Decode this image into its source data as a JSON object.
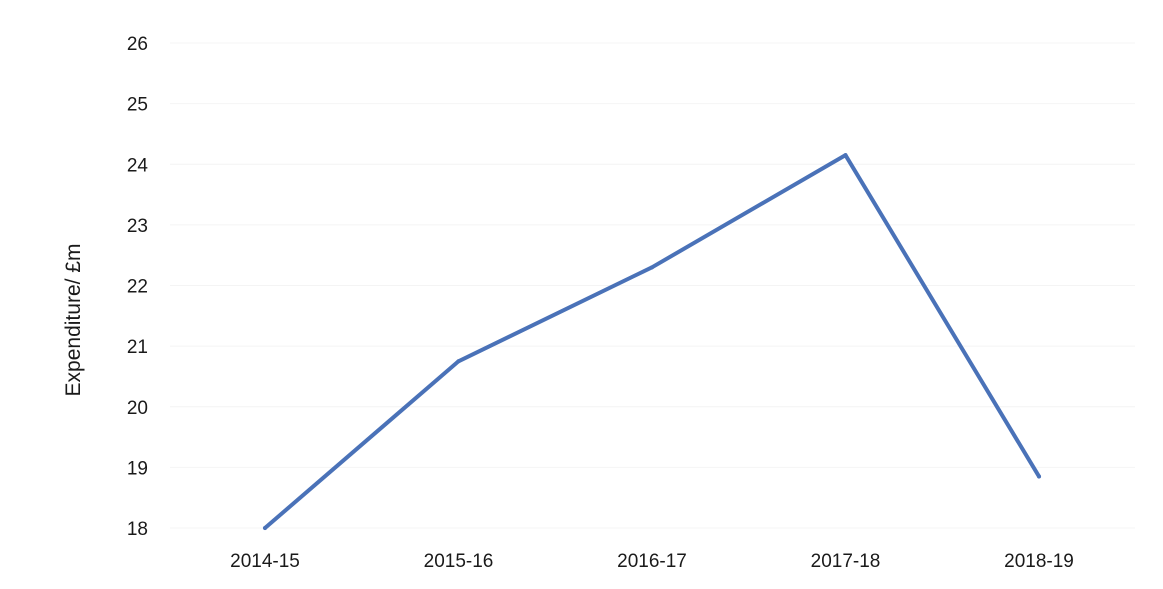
{
  "chart_data": {
    "type": "line",
    "title": "",
    "xlabel": "",
    "ylabel": "Expenditure/ £m",
    "categories": [
      "2014-15",
      "2015-16",
      "2016-17",
      "2017-18",
      "2018-19"
    ],
    "series": [
      {
        "values": [
          18.0,
          20.75,
          22.3,
          24.15,
          18.85
        ]
      }
    ],
    "ylim": [
      18,
      26
    ],
    "yticks": [
      18,
      19,
      20,
      21,
      22,
      23,
      24,
      25,
      26
    ],
    "grid": "faint horizontal",
    "legend": "none",
    "colors": {
      "series": "#4a72b8",
      "text": "#1a1a1a",
      "background": "#ffffff"
    }
  }
}
